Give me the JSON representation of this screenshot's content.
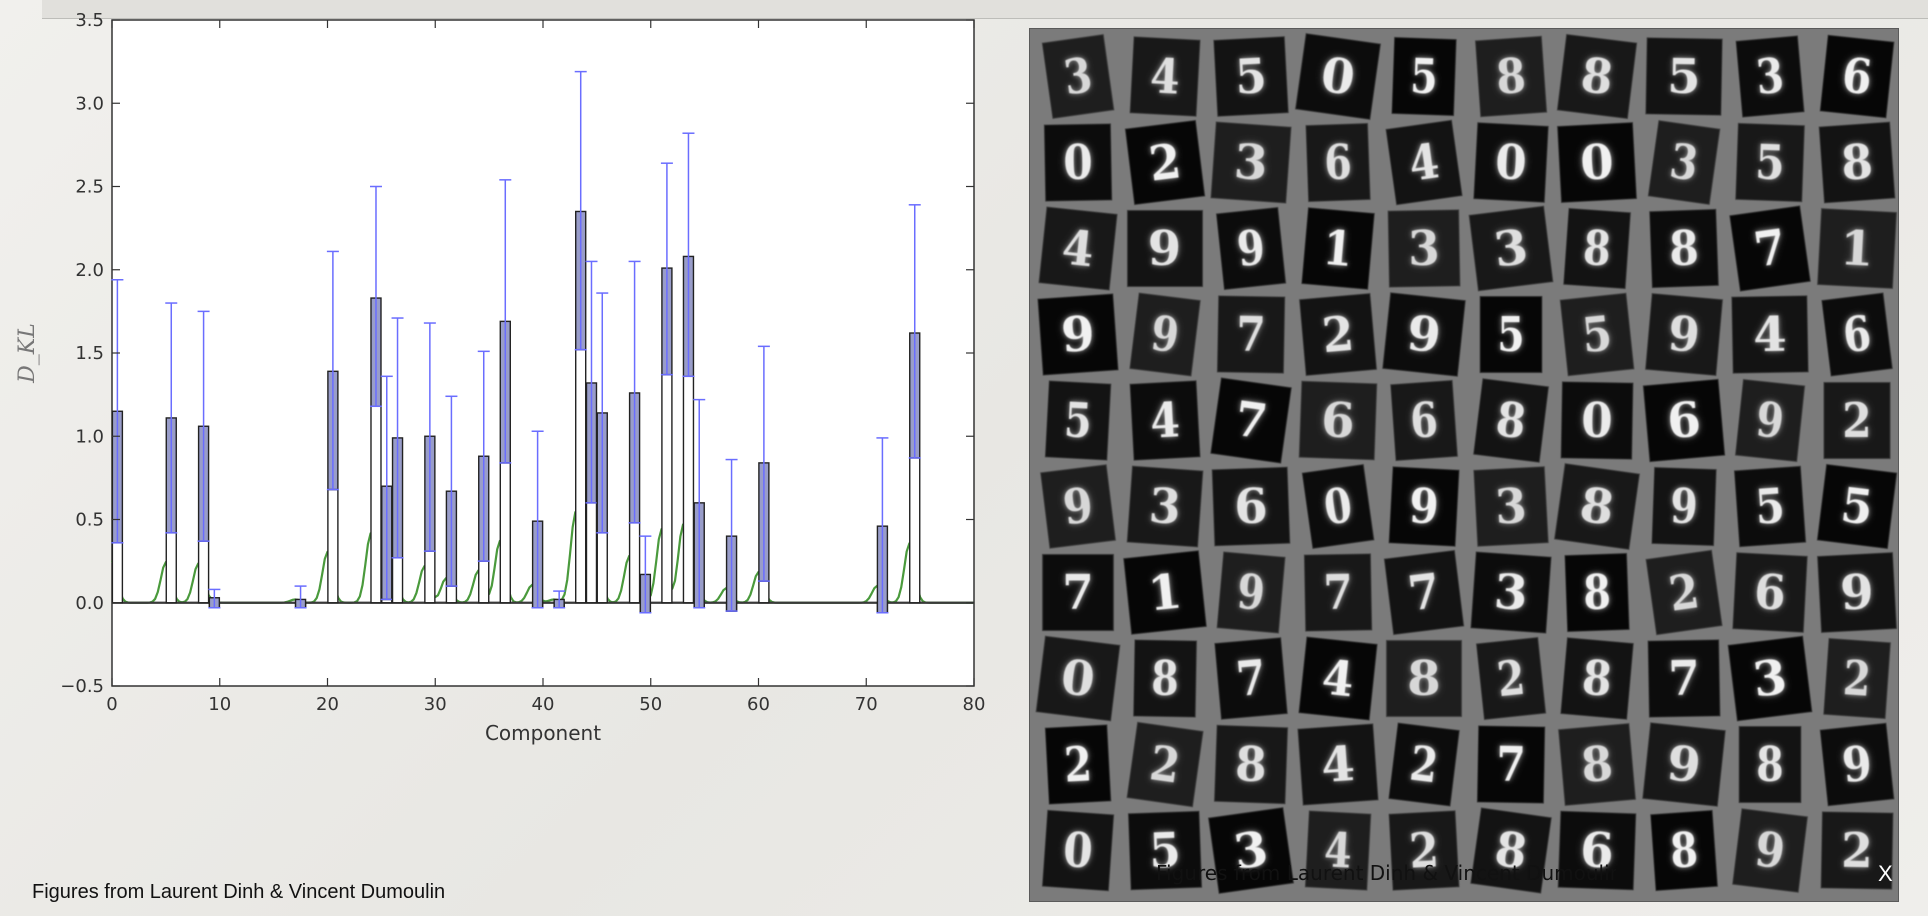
{
  "chart_data": {
    "type": "bar",
    "title": "",
    "xlabel": "Component",
    "ylabel": "D_KL",
    "xlim": [
      0,
      80
    ],
    "ylim": [
      -0.5,
      3.5
    ],
    "xticks": [
      "0",
      "10",
      "20",
      "30",
      "40",
      "50",
      "60",
      "70",
      "80"
    ],
    "yticks": [
      "−0.5",
      "0.0",
      "0.5",
      "1.0",
      "1.5",
      "2.0",
      "2.5",
      "3.0",
      "3.5"
    ],
    "grid": false,
    "legend": "none",
    "components": [
      0,
      5,
      8,
      9,
      17,
      20,
      24,
      25,
      26,
      29,
      31,
      34,
      36,
      39,
      41,
      43,
      44,
      45,
      48,
      49,
      51,
      53,
      54,
      57,
      60,
      71,
      74
    ],
    "means": [
      1.15,
      1.11,
      1.06,
      0.03,
      0.02,
      1.39,
      1.83,
      0.7,
      0.99,
      1.0,
      0.67,
      0.88,
      1.69,
      0.49,
      0.02,
      2.35,
      1.32,
      1.14,
      1.26,
      0.17,
      2.01,
      2.08,
      0.6,
      0.4,
      0.84,
      0.46,
      1.62
    ],
    "error_upper": [
      1.94,
      1.8,
      1.75,
      0.08,
      0.1,
      2.11,
      2.5,
      1.36,
      1.71,
      1.68,
      1.24,
      1.51,
      2.54,
      1.03,
      0.07,
      3.19,
      2.05,
      1.86,
      2.05,
      0.4,
      2.64,
      2.82,
      1.22,
      0.86,
      1.54,
      0.99,
      2.39
    ],
    "error_lower": [
      0.36,
      0.42,
      0.37,
      -0.03,
      -0.03,
      0.68,
      1.18,
      0.02,
      0.27,
      0.31,
      0.1,
      0.25,
      0.84,
      -0.03,
      -0.03,
      1.52,
      0.6,
      0.42,
      0.48,
      -0.06,
      1.37,
      1.36,
      -0.03,
      -0.05,
      0.13,
      -0.06,
      0.87
    ],
    "bar_color": "#999dc9",
    "errorbar_color": "#6a6dff",
    "distribution_color": "#4a9a3c",
    "axis_color": "#333333",
    "baseline": 0.0
  },
  "digit_grid": {
    "rows": [
      [
        "3",
        "4",
        "5",
        "0",
        "5",
        "8",
        "8",
        "5",
        "3",
        "6"
      ],
      [
        "0",
        "2",
        "3",
        "6",
        "4",
        "0",
        "0",
        "3",
        "5",
        "8"
      ],
      [
        "4",
        "9",
        "9",
        "1",
        "3",
        "3",
        "8",
        "8",
        "7",
        "1"
      ],
      [
        "9",
        "9",
        "7",
        "2",
        "9",
        "5",
        "5",
        "9",
        "4",
        "6"
      ],
      [
        "5",
        "4",
        "7",
        "6",
        "6",
        "8",
        "0",
        "6",
        "9",
        "2"
      ],
      [
        "9",
        "3",
        "6",
        "0",
        "9",
        "3",
        "8",
        "9",
        "5",
        "5"
      ],
      [
        "7",
        "1",
        "9",
        "7",
        "7",
        "3",
        "8",
        "2",
        "6",
        "9"
      ],
      [
        "0",
        "8",
        "7",
        "4",
        "8",
        "2",
        "8",
        "7",
        "3",
        "2"
      ],
      [
        "2",
        "2",
        "8",
        "4",
        "2",
        "7",
        "8",
        "9",
        "8",
        "9"
      ],
      [
        "0",
        "5",
        "3",
        "4",
        "2",
        "8",
        "6",
        "8",
        "9",
        "2"
      ]
    ]
  },
  "overlay_caption": "Figures from Laurent Dinh & Vincent Dumoulin",
  "close_label": "X",
  "credit": "Figures from Laurent Dinh & Vincent Dumoulin"
}
